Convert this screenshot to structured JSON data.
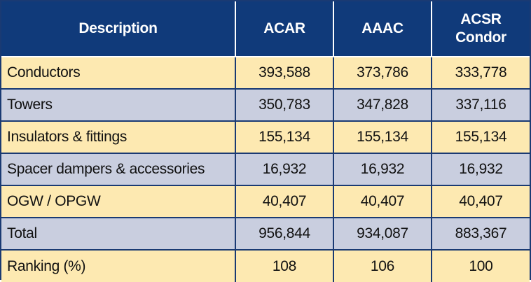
{
  "table": {
    "headers": [
      "Description",
      "ACAR",
      "AAAC",
      "ACSR\nCondor"
    ],
    "header_lines": {
      "col4_line1": "ACSR",
      "col4_line2": "Condor"
    },
    "rows": [
      {
        "label": "Conductors",
        "acar": "393,588",
        "aaac": "373,786",
        "acsr": "333,778"
      },
      {
        "label": "Towers",
        "acar": "350,783",
        "aaac": "347,828",
        "acsr": "337,116"
      },
      {
        "label": "Insulators & fittings",
        "acar": "155,134",
        "aaac": "155,134",
        "acsr": "155,134"
      },
      {
        "label": "Spacer dampers & accessories",
        "acar": "16,932",
        "aaac": "16,932",
        "acsr": "16,932"
      },
      {
        "label": "OGW / OPGW",
        "acar": "40,407",
        "aaac": "40,407",
        "acsr": "40,407"
      },
      {
        "label": "Total",
        "acar": "956,844",
        "aaac": "934,087",
        "acsr": "883,367"
      },
      {
        "label": "Ranking (%)",
        "acar": "108",
        "aaac": "106",
        "acsr": "100"
      }
    ]
  },
  "colors": {
    "header_bg": "#103a7a",
    "row_yellow": "#fde9b1",
    "row_blue": "#c9cedf",
    "border": "#1a3a73"
  }
}
